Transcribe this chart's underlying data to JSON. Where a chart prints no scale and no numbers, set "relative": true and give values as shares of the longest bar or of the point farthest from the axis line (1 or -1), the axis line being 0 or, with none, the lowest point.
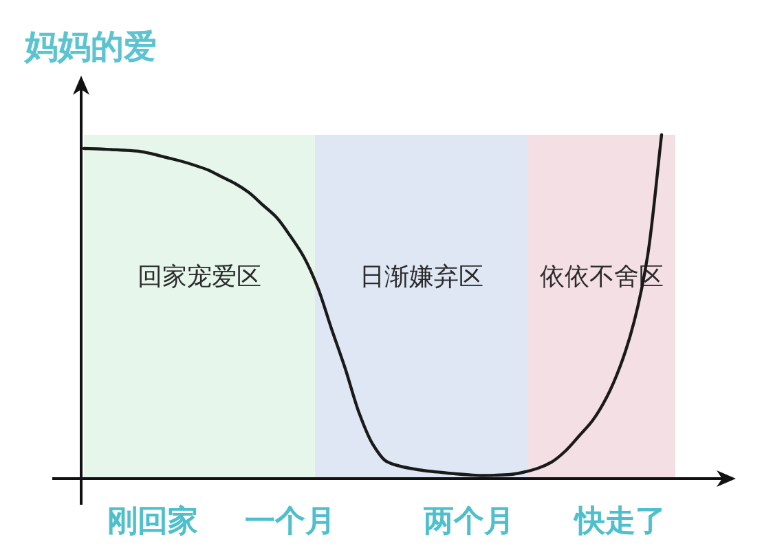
{
  "chart_data": {
    "type": "line",
    "relative": true,
    "ylabel": "妈妈的爱",
    "categories": [
      null,
      null,
      null,
      null,
      null,
      "刚回家",
      null,
      null,
      null,
      null,
      null,
      null,
      null,
      null,
      null,
      "一个月",
      null,
      null,
      null,
      null,
      null,
      null,
      null,
      null,
      null,
      null,
      null,
      null,
      "两个月",
      null,
      null,
      null,
      null,
      null,
      null,
      null,
      null,
      null,
      null,
      "快走了",
      null,
      null,
      null
    ],
    "values": [
      0.96,
      0.959,
      0.957,
      0.955,
      0.952,
      0.944,
      0.934,
      0.924,
      0.912,
      0.898,
      0.878,
      0.858,
      0.832,
      0.796,
      0.76,
      0.706,
      0.644,
      0.556,
      0.436,
      0.32,
      0.192,
      0.1,
      0.05,
      0.036,
      0.028,
      0.022,
      0.018,
      0.014,
      0.011,
      0.009,
      0.01,
      0.012,
      0.019,
      0.03,
      0.048,
      0.08,
      0.124,
      0.17,
      0.236,
      0.328,
      0.456,
      0.652,
      1
    ],
    "color": "#1a1a1a",
    "annotations": [
      "回家宠爱区",
      "日渐嫌弃区",
      "依依不舍区"
    ]
  }
}
